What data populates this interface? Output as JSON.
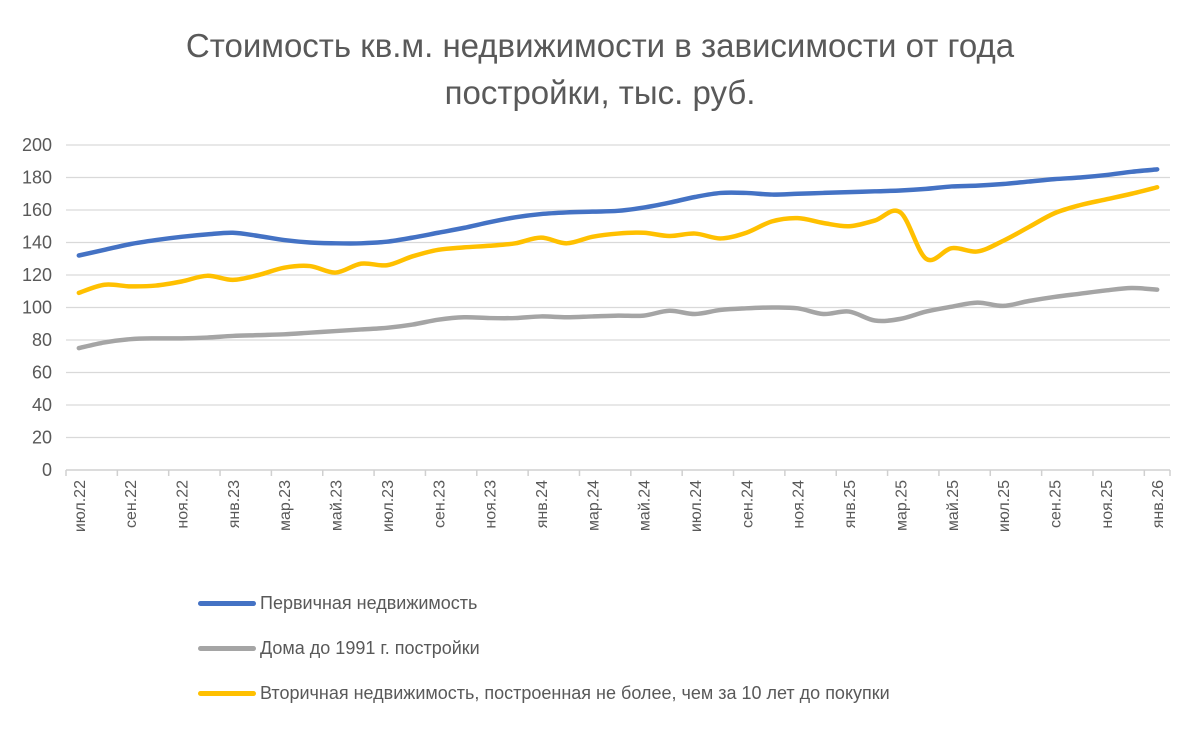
{
  "chart_data": {
    "type": "line",
    "title": {
      "line1": "Стоимость кв.м. недвижимости в зависимости от года",
      "line2": "постройки, тыс. руб."
    },
    "y_axis": {
      "min": 0,
      "max": 200,
      "step": 20,
      "ticks": [
        0,
        20,
        40,
        60,
        80,
        100,
        120,
        140,
        160,
        180,
        200
      ]
    },
    "x_axis": {
      "tick_labels": [
        "июл.22",
        "сен.22",
        "ноя.22",
        "янв.23",
        "мар.23",
        "май.23",
        "июл.23",
        "сен.23",
        "ноя.23",
        "янв.24",
        "мар.24",
        "май.24",
        "июл.24",
        "сен.24",
        "ноя.24",
        "янв.25",
        "мар.25",
        "май.25",
        "июл.25",
        "сен.25",
        "ноя.25",
        "янв.26"
      ],
      "points_per_tick_label": 2,
      "label_rotation_deg": -90
    },
    "grid": true,
    "legend_position": "bottom-left",
    "colors": {
      "gridline": "#D9D9D9",
      "axis": "#D0D0D0",
      "text": "#595959"
    },
    "series": [
      {
        "name": "Первичная недвижимость",
        "color": "#4472C4",
        "values": [
          132,
          135.5,
          139,
          141.5,
          143.5,
          145,
          146,
          144,
          141.5,
          140,
          139.5,
          139.5,
          140.5,
          143,
          146,
          149,
          152.5,
          155.5,
          157.5,
          158.5,
          159,
          159.5,
          161.5,
          164.5,
          168,
          170.5,
          170.5,
          169.5,
          170,
          170.5,
          171,
          171.5,
          172,
          173,
          174.5,
          175,
          176,
          177.5,
          179,
          180,
          181.5,
          183.5,
          185
        ]
      },
      {
        "name": "Дома до 1991 г. постройки",
        "color": "#A5A5A5",
        "values": [
          75,
          78.5,
          80.5,
          81,
          81,
          81.5,
          82.5,
          83,
          83.5,
          84.5,
          85.5,
          86.5,
          87.5,
          89.5,
          92.5,
          94,
          93.5,
          93.5,
          94.5,
          94,
          94.5,
          95,
          95,
          98,
          96,
          98.5,
          99.5,
          100,
          99.5,
          96,
          97.5,
          92,
          93,
          97.5,
          100.5,
          103,
          101,
          104,
          106.5,
          108.5,
          110.5,
          112,
          111
        ]
      },
      {
        "name": "Вторичная недвижимость, построенная не более, чем за 10 лет до покупки",
        "color": "#FFC000",
        "values": [
          109,
          114,
          113,
          113.5,
          116,
          119.5,
          117,
          120,
          124.5,
          125.5,
          121.5,
          127,
          126,
          131.5,
          135.5,
          137,
          138,
          139.5,
          143,
          139.5,
          143.5,
          145.5,
          146,
          144,
          145.5,
          142.5,
          146,
          153,
          155,
          152,
          150,
          153.5,
          158.5,
          130,
          136.5,
          134.5,
          141,
          149.5,
          158,
          163,
          166.5,
          170,
          174
        ]
      }
    ]
  }
}
